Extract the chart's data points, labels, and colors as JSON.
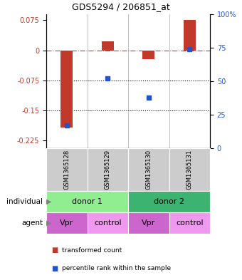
{
  "title": "GDS5294 / 206851_at",
  "samples": [
    "GSM1365128",
    "GSM1365129",
    "GSM1365130",
    "GSM1365131"
  ],
  "bar_values": [
    -0.193,
    0.022,
    -0.022,
    0.075
  ],
  "dot_values": [
    17,
    52,
    38,
    74
  ],
  "bar_color": "#c0392b",
  "dot_color": "#2255cc",
  "ylim_left": [
    -0.245,
    0.09
  ],
  "ylim_right": [
    0,
    100
  ],
  "yticks_left": [
    0.075,
    0,
    -0.075,
    -0.15,
    -0.225
  ],
  "yticks_right": [
    100,
    75,
    50,
    25,
    0
  ],
  "dotted_lines": [
    -0.075,
    -0.15
  ],
  "individual_labels": [
    "donor 1",
    "donor 2"
  ],
  "individual_colors": [
    "#90ee90",
    "#3cb371"
  ],
  "agent_labels": [
    "Vpr",
    "control",
    "Vpr",
    "control"
  ],
  "vpr_color": "#cc66cc",
  "control_color": "#ee99ee",
  "sample_bg_color": "#cccccc",
  "legend_red_label": "transformed count",
  "legend_blue_label": "percentile rank within the sample"
}
